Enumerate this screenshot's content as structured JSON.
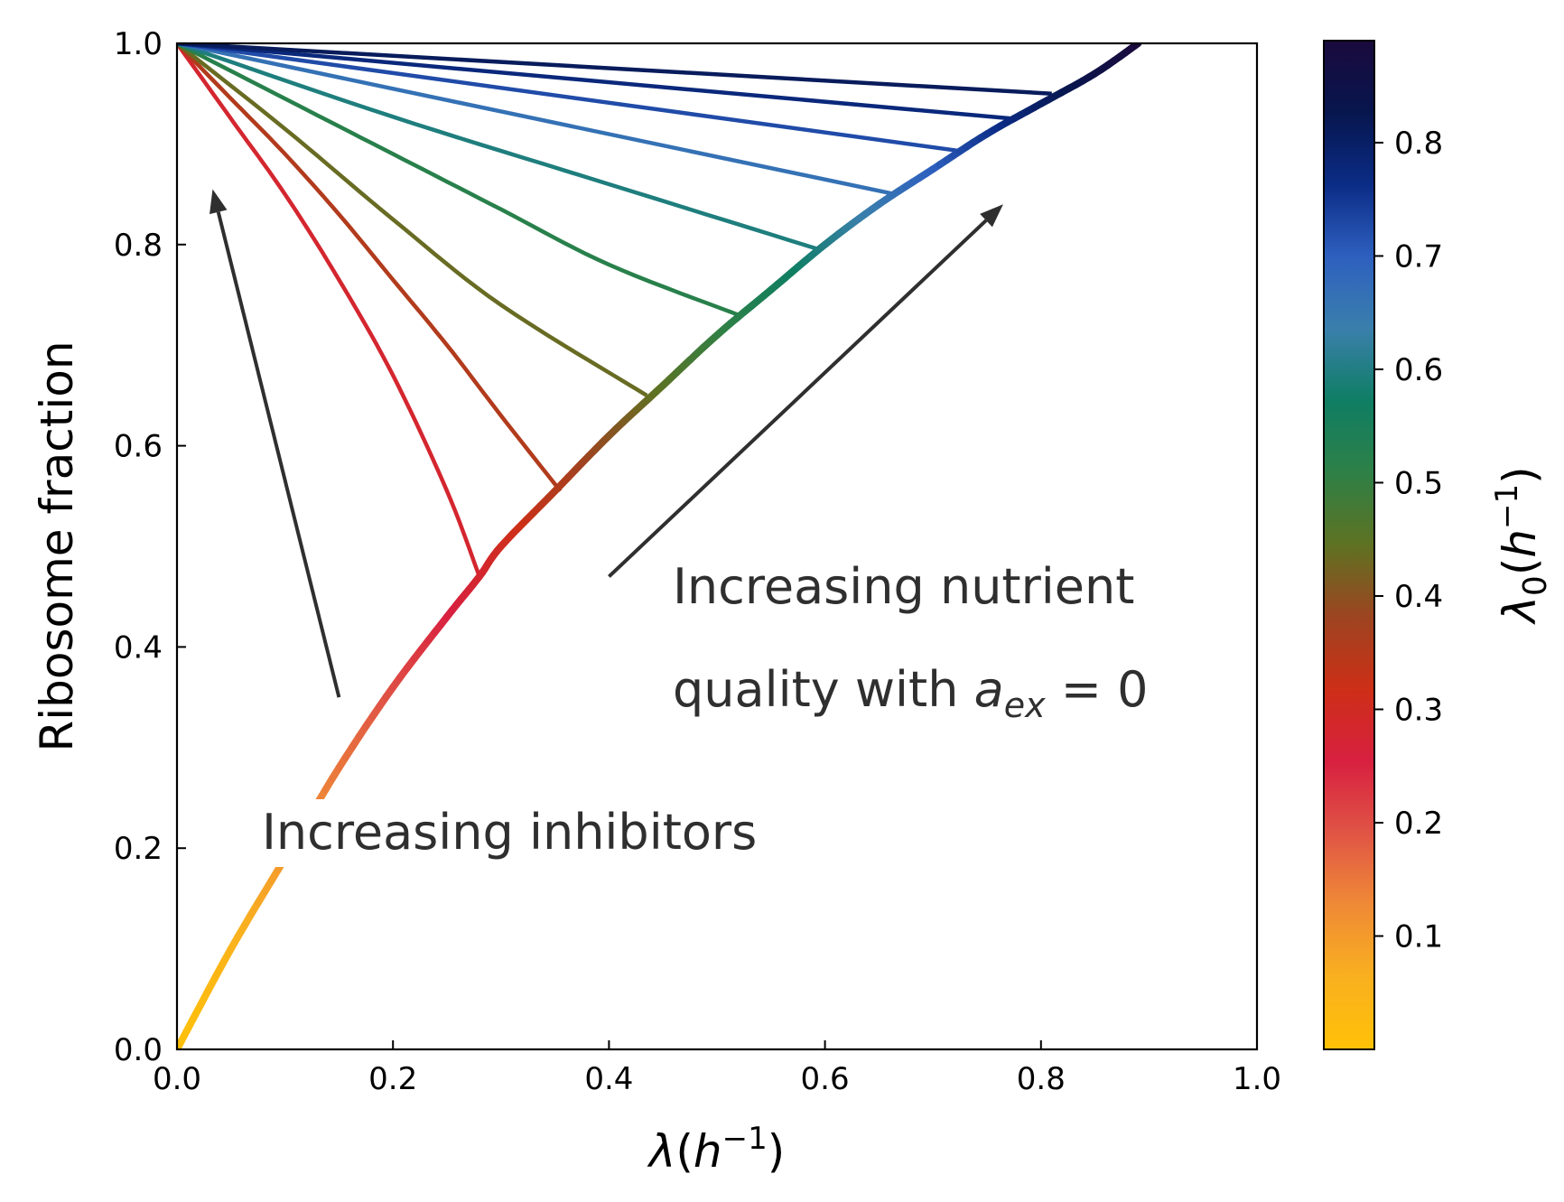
{
  "chart_data": {
    "type": "line",
    "xlabel_symbol": "λ",
    "xlabel_unit_base": "h",
    "xlabel_unit_exp": "−1",
    "ylabel": "Ribosome fraction",
    "xlim": [
      0.0,
      1.0
    ],
    "ylim": [
      0.0,
      1.0
    ],
    "x_ticks": [
      "0.0",
      "0.2",
      "0.4",
      "0.6",
      "0.8",
      "1.0"
    ],
    "y_ticks": [
      "0.0",
      "0.2",
      "0.4",
      "0.6",
      "0.8",
      "1.0"
    ],
    "grid": false,
    "colorbar": {
      "label_symbol": "λ",
      "label_sub": "0",
      "label_unit_base": "h",
      "label_unit_exp": "−1",
      "range": [
        0.0,
        0.89
      ],
      "ticks": [
        "0.1",
        "0.2",
        "0.3",
        "0.4",
        "0.5",
        "0.6",
        "0.7",
        "0.8"
      ],
      "colors": [
        "#ffc107",
        "#f9b01f",
        "#ef8a36",
        "#e05545",
        "#d82040",
        "#cd2f17",
        "#9d4420",
        "#5e7222",
        "#2e8046",
        "#0f7e63",
        "#3a7fac",
        "#2e60bf",
        "#0b2c86",
        "#07164e",
        "#1a0a3c"
      ]
    },
    "nutrient_curve": {
      "x": [
        0.0,
        0.05,
        0.1,
        0.15,
        0.2,
        0.25,
        0.28,
        0.3,
        0.35,
        0.4,
        0.45,
        0.5,
        0.55,
        0.6,
        0.65,
        0.7,
        0.75,
        0.8,
        0.85,
        0.89
      ],
      "y": [
        0.0,
        0.1,
        0.19,
        0.28,
        0.36,
        0.43,
        0.47,
        0.5,
        0.555,
        0.61,
        0.66,
        0.71,
        0.755,
        0.8,
        0.84,
        0.875,
        0.91,
        0.94,
        0.97,
        1.0
      ]
    },
    "inhibitor_curves": [
      {
        "lambda0": 0.28,
        "x": [
          0.0,
          0.05,
          0.1,
          0.15,
          0.2,
          0.25,
          0.28
        ],
        "y": [
          1.0,
          0.925,
          0.85,
          0.765,
          0.67,
          0.555,
          0.47
        ]
      },
      {
        "lambda0": 0.355,
        "x": [
          0.0,
          0.05,
          0.1,
          0.15,
          0.2,
          0.25,
          0.3,
          0.355
        ],
        "y": [
          1.0,
          0.945,
          0.89,
          0.83,
          0.765,
          0.7,
          0.63,
          0.555
        ]
      },
      {
        "lambda0": 0.435,
        "x": [
          0.0,
          0.1,
          0.2,
          0.3,
          0.435
        ],
        "y": [
          1.0,
          0.915,
          0.825,
          0.74,
          0.65
        ]
      },
      {
        "lambda0": 0.52,
        "x": [
          0.0,
          0.1,
          0.2,
          0.3,
          0.4,
          0.52
        ],
        "y": [
          1.0,
          0.945,
          0.89,
          0.835,
          0.78,
          0.73
        ]
      },
      {
        "lambda0": 0.595,
        "x": [
          0.0,
          0.2,
          0.4,
          0.595
        ],
        "y": [
          1.0,
          0.927,
          0.86,
          0.795
        ]
      },
      {
        "lambda0": 0.665,
        "x": [
          0.0,
          0.665
        ],
        "y": [
          1.0,
          0.85
        ]
      },
      {
        "lambda0": 0.725,
        "x": [
          0.0,
          0.725
        ],
        "y": [
          1.0,
          0.893
        ]
      },
      {
        "lambda0": 0.775,
        "x": [
          0.0,
          0.775
        ],
        "y": [
          1.0,
          0.925
        ]
      },
      {
        "lambda0": 0.81,
        "x": [
          0.0,
          0.81
        ],
        "y": [
          1.0,
          0.95
        ]
      }
    ],
    "annotations": {
      "nutrient_line1": "Increasing nutrient",
      "nutrient_line2_prefix": "quality with ",
      "nutrient_symbol": "a",
      "nutrient_sub": "ex",
      "nutrient_suffix": " = 0",
      "inhibitors": "Increasing inhibitors",
      "arrow_inhibitors": {
        "from": [
          0.15,
          0.35
        ],
        "to": [
          0.033,
          0.855
        ]
      },
      "arrow_nutrient": {
        "from": [
          0.4,
          0.47
        ],
        "to": [
          0.765,
          0.84
        ]
      }
    }
  }
}
